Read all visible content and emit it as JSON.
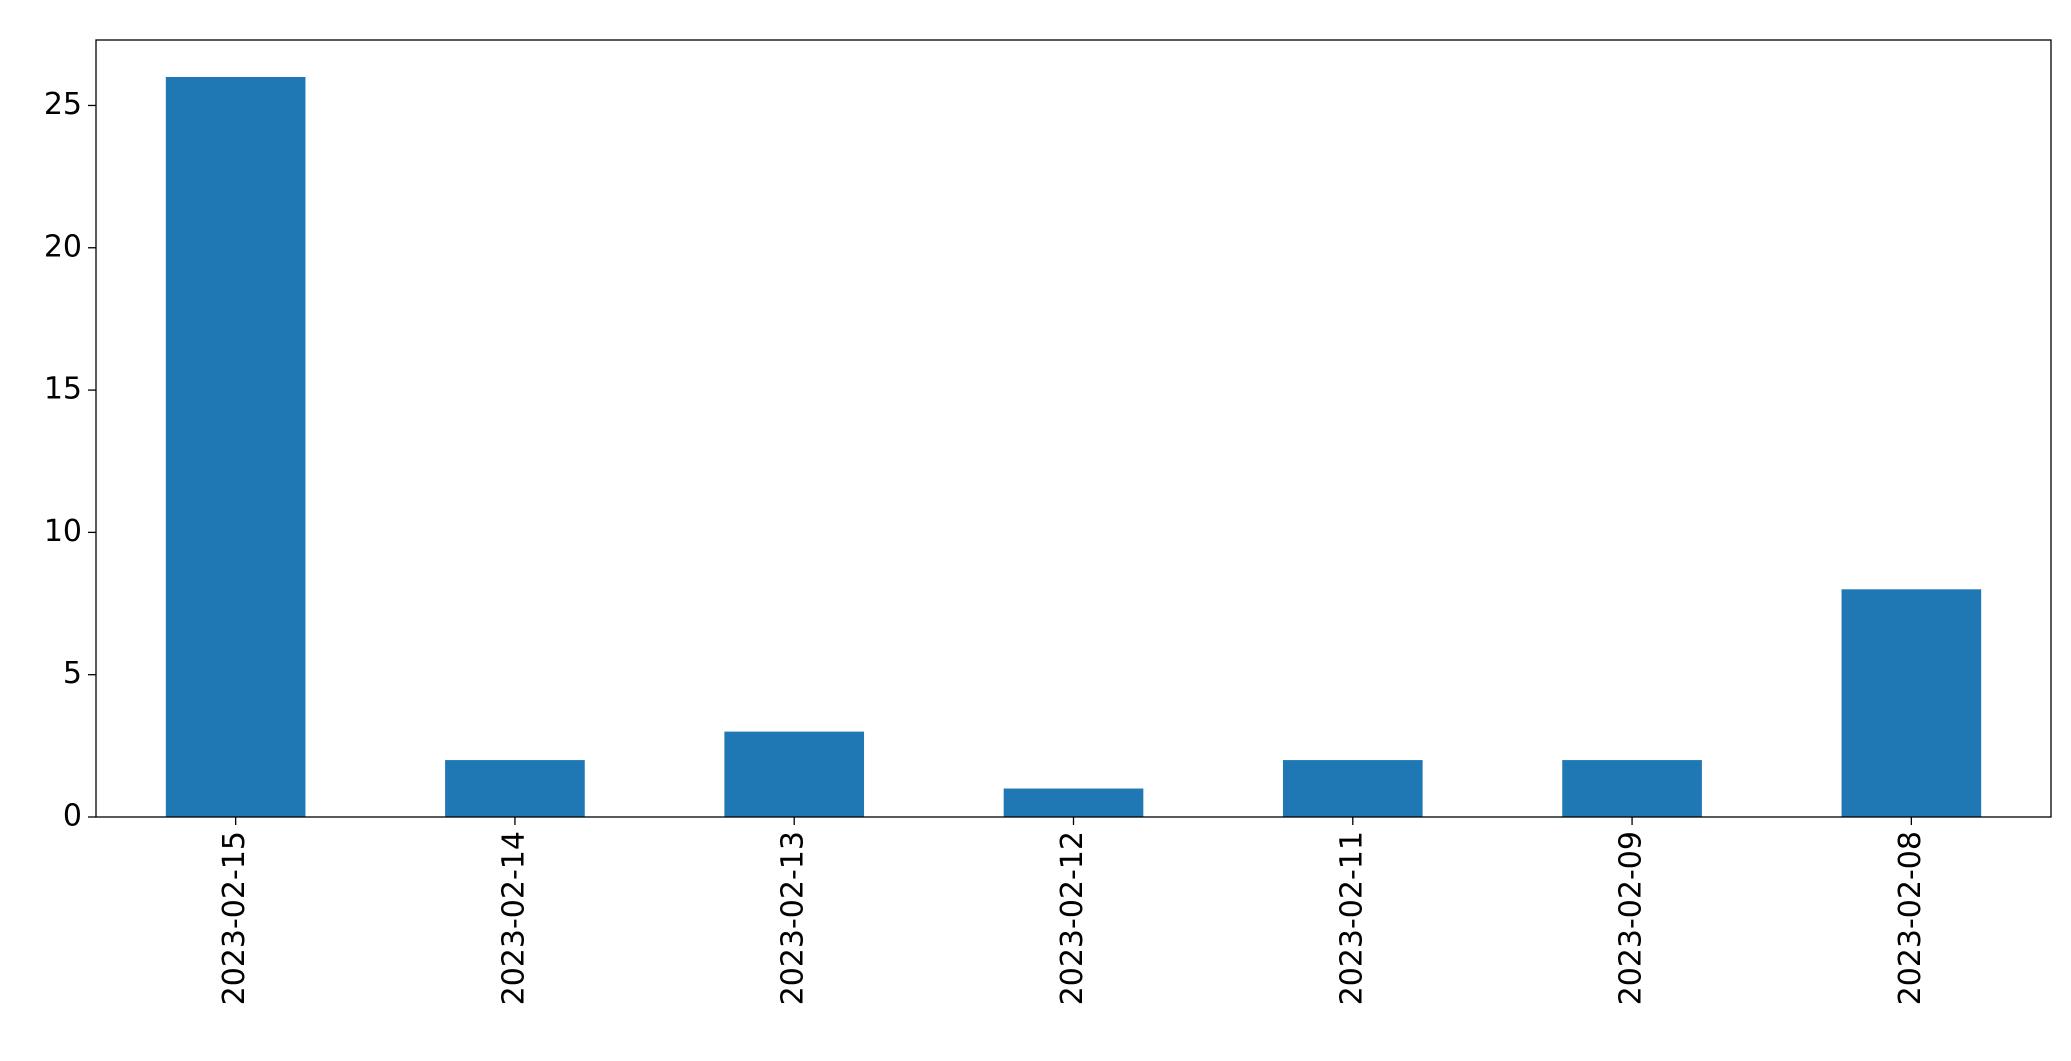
{
  "chart_data": {
    "type": "bar",
    "categories": [
      "2023-02-15",
      "2023-02-14",
      "2023-02-13",
      "2023-02-12",
      "2023-02-11",
      "2023-02-09",
      "2023-02-08"
    ],
    "values": [
      26,
      2,
      3,
      1,
      2,
      2,
      8
    ],
    "color": "#1f77b4",
    "ylim": [
      0,
      27.3
    ],
    "yticks": [
      0,
      5,
      10,
      15,
      20,
      25
    ],
    "grid": false
  }
}
